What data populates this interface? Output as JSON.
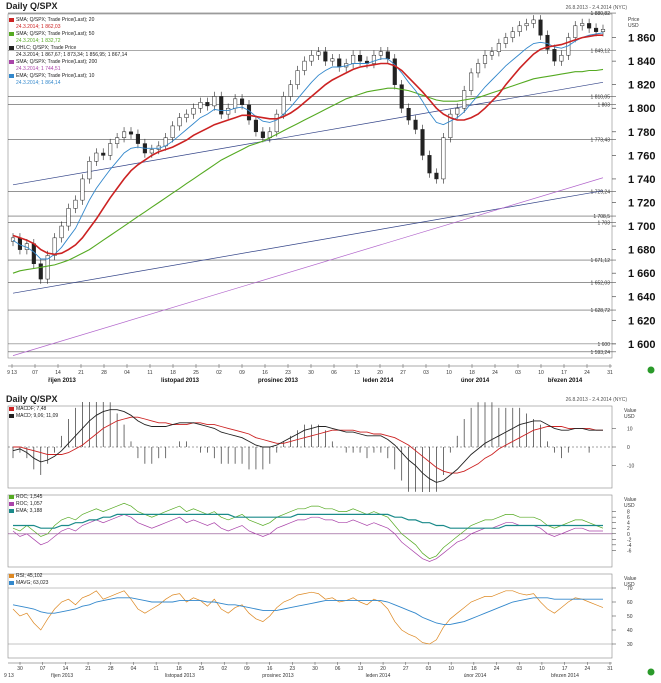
{
  "panels": {
    "main": {
      "title": "Daily Q/SPX",
      "date_range": "26.8.2013 - 2.4.2014 (NYC)",
      "axis_unit_1": "Price",
      "axis_unit_2": "USD",
      "legend": [
        {
          "label": "SMA; Q/SPX; Trade Price(Last); 20",
          "value": "24.3.2014; 1 862,03",
          "color": "#cc2222"
        },
        {
          "label": "SMA; Q/SPX; Trade Price(Last); 50",
          "value": "24.3.2014; 1 832,72",
          "color": "#55aa22"
        },
        {
          "label": "OHLC; Q/SPX; Trade Price",
          "value": "24.3.2014; 1 867,67; 1 873,34; 1 856,95; 1 867,14",
          "color": "#222222"
        },
        {
          "label": "SMA; Q/SPX; Trade Price(Last); 200",
          "value": "24.3.2014; 1 744,51",
          "color": "#aa44aa"
        },
        {
          "label": "EMA; Q/SPX; Trade Price(Last); 10",
          "value": "24.3.2014; 1 864,14",
          "color": "#3388cc"
        }
      ]
    },
    "macd": {
      "title": "Daily Q/SPX",
      "date_range": "26.8.2013 - 2.4.2014 (NYC)",
      "axis_unit_1": "Value",
      "axis_unit_2": "USD",
      "legend": [
        {
          "label": "MACDF; 7,48",
          "color": "#cc2222"
        },
        {
          "label": "MACD; 9,06; 11,09",
          "color": "#222222"
        }
      ]
    },
    "roc": {
      "axis_unit_1": "Value",
      "axis_unit_2": "USD",
      "legend": [
        {
          "label": "ROC; 1,545",
          "color": "#55aa22"
        },
        {
          "label": "ROC; 1,057",
          "color": "#aa44aa"
        },
        {
          "label": "EMA; 3,188",
          "color": "#1a8a8a"
        }
      ]
    },
    "rsi": {
      "axis_unit_1": "Value",
      "axis_unit_2": "USD",
      "legend": [
        {
          "label": "RSI; 45,102",
          "color": "#dd8822"
        },
        {
          "label": "MAVG; 63,023",
          "color": "#3388cc"
        }
      ]
    }
  },
  "chart_data": [
    {
      "type": "line",
      "name": "price",
      "y_ticks": [
        1600,
        1620,
        1640,
        1660,
        1680,
        1700,
        1720,
        1740,
        1760,
        1780,
        1800,
        1820,
        1840,
        1860
      ],
      "ylim": [
        1588,
        1880
      ],
      "levels": [
        {
          "value": 1880.82,
          "label": "1 880,82"
        },
        {
          "value": 1849.12,
          "label": "1 849,12"
        },
        {
          "value": 1810.05,
          "label": "1 810,05"
        },
        {
          "value": 1803,
          "label": "1 803"
        },
        {
          "value": 1773.43,
          "label": "1 773,43"
        },
        {
          "value": 1729.24,
          "label": "1 729,24"
        },
        {
          "value": 1708.5,
          "label": "1 708,5"
        },
        {
          "value": 1703,
          "label": "1 703"
        },
        {
          "value": 1671.12,
          "label": "1 671,12"
        },
        {
          "value": 1652.03,
          "label": "1 652,03"
        },
        {
          "value": 1628.72,
          "label": "1 628,72"
        },
        {
          "value": 1600,
          "label": "1 600"
        },
        {
          "value": 1593.24,
          "label": "1 593,24"
        }
      ],
      "x_ticks": [
        "9 13",
        "07",
        "14",
        "21",
        "28",
        "04",
        "11",
        "18",
        "25",
        "02",
        "09",
        "16",
        "23",
        "30",
        "06",
        "13",
        "20",
        "27",
        "03",
        "10",
        "18",
        "24",
        "03",
        "10",
        "17",
        "24",
        "31"
      ],
      "month_labels": [
        "říjen 2013",
        "listopad 2013",
        "prosinec 2013",
        "leden 2014",
        "únor 2014",
        "březen 2014"
      ],
      "close": [
        1690,
        1680,
        1685,
        1668,
        1655,
        1675,
        1690,
        1700,
        1715,
        1722,
        1740,
        1755,
        1762,
        1760,
        1770,
        1775,
        1780,
        1778,
        1770,
        1762,
        1765,
        1768,
        1775,
        1785,
        1792,
        1795,
        1800,
        1805,
        1802,
        1810,
        1795,
        1800,
        1808,
        1803,
        1790,
        1780,
        1775,
        1780,
        1795,
        1810,
        1820,
        1832,
        1840,
        1845,
        1848,
        1840,
        1842,
        1835,
        1838,
        1845,
        1840,
        1838,
        1845,
        1848,
        1842,
        1820,
        1800,
        1790,
        1782,
        1760,
        1745,
        1740,
        1775,
        1795,
        1800,
        1815,
        1830,
        1838,
        1845,
        1848,
        1855,
        1860,
        1865,
        1870,
        1872,
        1875,
        1862,
        1850,
        1840,
        1845,
        1860,
        1870,
        1872,
        1868,
        1865,
        1867
      ],
      "ema10": [
        1688,
        1684,
        1682,
        1678,
        1672,
        1672,
        1676,
        1682,
        1690,
        1698,
        1710,
        1722,
        1732,
        1740,
        1748,
        1755,
        1762,
        1766,
        1767,
        1766,
        1766,
        1766,
        1768,
        1772,
        1777,
        1782,
        1787,
        1792,
        1795,
        1799,
        1798,
        1798,
        1800,
        1801,
        1798,
        1793,
        1789,
        1788,
        1790,
        1795,
        1801,
        1808,
        1815,
        1822,
        1828,
        1832,
        1835,
        1835,
        1836,
        1838,
        1838,
        1838,
        1840,
        1842,
        1842,
        1837,
        1830,
        1822,
        1815,
        1806,
        1796,
        1788,
        1786,
        1789,
        1792,
        1797,
        1804,
        1811,
        1818,
        1824,
        1830,
        1836,
        1841,
        1846,
        1851,
        1855,
        1856,
        1855,
        1852,
        1851,
        1853,
        1857,
        1860,
        1862,
        1863,
        1864
      ],
      "sma20": [
        1692,
        1690,
        1688,
        1685,
        1680,
        1677,
        1676,
        1677,
        1680,
        1684,
        1690,
        1698,
        1706,
        1715,
        1724,
        1732,
        1740,
        1747,
        1752,
        1756,
        1760,
        1763,
        1765,
        1767,
        1770,
        1773,
        1777,
        1780,
        1783,
        1786,
        1788,
        1790,
        1792,
        1794,
        1794,
        1793,
        1792,
        1791,
        1791,
        1793,
        1796,
        1800,
        1805,
        1810,
        1815,
        1820,
        1824,
        1827,
        1830,
        1833,
        1835,
        1836,
        1837,
        1838,
        1838,
        1836,
        1832,
        1826,
        1820,
        1814,
        1807,
        1800,
        1795,
        1792,
        1790,
        1790,
        1792,
        1795,
        1800,
        1806,
        1812,
        1820,
        1827,
        1834,
        1840,
        1846,
        1850,
        1852,
        1853,
        1854,
        1856,
        1858,
        1860,
        1861,
        1862,
        1862
      ],
      "sma50": [
        1660,
        1662,
        1663,
        1664,
        1665,
        1666,
        1667,
        1669,
        1671,
        1674,
        1677,
        1680,
        1684,
        1688,
        1692,
        1696,
        1700,
        1704,
        1708,
        1712,
        1716,
        1720,
        1724,
        1728,
        1732,
        1736,
        1740,
        1744,
        1748,
        1752,
        1756,
        1759,
        1762,
        1765,
        1768,
        1770,
        1772,
        1775,
        1778,
        1781,
        1784,
        1787,
        1790,
        1793,
        1796,
        1799,
        1802,
        1805,
        1808,
        1810,
        1812,
        1814,
        1815,
        1816,
        1817,
        1817,
        1816,
        1815,
        1813,
        1811,
        1809,
        1807,
        1806,
        1806,
        1806,
        1807,
        1808,
        1809,
        1811,
        1813,
        1815,
        1817,
        1819,
        1821,
        1823,
        1825,
        1826,
        1827,
        1828,
        1829,
        1830,
        1831,
        1831,
        1832,
        1832,
        1833
      ],
      "trend_lines": [
        {
          "x": [
            0,
            85
          ],
          "y": [
            1735,
            1822
          ]
        },
        {
          "x": [
            0,
            85
          ],
          "y": [
            1643,
            1730
          ]
        },
        {
          "x": [
            0,
            85
          ],
          "y": [
            1590,
            1741
          ]
        }
      ]
    },
    {
      "type": "line",
      "name": "macd",
      "ylim": [
        -22,
        22
      ],
      "y_ticks": [
        10,
        0,
        -10
      ],
      "macd": [
        -2,
        -1,
        -3,
        -6,
        -8,
        -7,
        -5,
        -2,
        2,
        6,
        10,
        14,
        17,
        19,
        20,
        20,
        19,
        17,
        14,
        12,
        11,
        11,
        11,
        12,
        13,
        13,
        13,
        12,
        11,
        10,
        8,
        7,
        6,
        5,
        3,
        1,
        0,
        0,
        1,
        3,
        5,
        7,
        9,
        10,
        11,
        11,
        10,
        9,
        8,
        8,
        7,
        6,
        6,
        6,
        4,
        1,
        -3,
        -7,
        -10,
        -14,
        -17,
        -19,
        -18,
        -15,
        -12,
        -8,
        -4,
        -1,
        2,
        4,
        6,
        8,
        10,
        12,
        13,
        14,
        14,
        12,
        10,
        9,
        9,
        10,
        10,
        9,
        9,
        9
      ],
      "signal": [
        0,
        0,
        -1,
        -2,
        -3,
        -4,
        -4,
        -4,
        -3,
        -1,
        1,
        4,
        7,
        10,
        12,
        14,
        15,
        16,
        16,
        15,
        14,
        13,
        13,
        12,
        12,
        12,
        13,
        13,
        12,
        12,
        11,
        10,
        9,
        8,
        7,
        5,
        4,
        3,
        2,
        2,
        3,
        4,
        5,
        6,
        7,
        8,
        9,
        9,
        9,
        9,
        8,
        8,
        7,
        7,
        6,
        5,
        3,
        1,
        -2,
        -5,
        -8,
        -11,
        -13,
        -14,
        -14,
        -13,
        -11,
        -9,
        -6,
        -4,
        -1,
        1,
        3,
        5,
        7,
        9,
        10,
        11,
        11,
        11,
        10,
        10,
        10,
        10,
        9,
        9
      ]
    },
    {
      "type": "line",
      "name": "roc",
      "ylim": [
        -12,
        14
      ],
      "y_ticks": [
        8,
        6,
        4,
        2,
        0,
        -2,
        -4,
        -6
      ],
      "roc1": [
        2,
        1,
        3,
        1,
        -1,
        0,
        3,
        5,
        6,
        5,
        7,
        8,
        9,
        8,
        9,
        10,
        11,
        10,
        8,
        7,
        6,
        7,
        8,
        9,
        10,
        8,
        9,
        8,
        7,
        8,
        6,
        5,
        6,
        7,
        5,
        4,
        3,
        4,
        6,
        7,
        8,
        9,
        9,
        10,
        10,
        9,
        9,
        8,
        8,
        9,
        8,
        7,
        8,
        7,
        6,
        3,
        0,
        -2,
        -4,
        -7,
        -9,
        -8,
        -5,
        -3,
        -1,
        1,
        3,
        4,
        5,
        5,
        6,
        7,
        7,
        6,
        6,
        6,
        5,
        3,
        2,
        3,
        4,
        5,
        5,
        4,
        3,
        2
      ],
      "roc2": [
        1,
        -1,
        0,
        -2,
        -4,
        -3,
        -1,
        1,
        2,
        1,
        3,
        4,
        5,
        4,
        5,
        6,
        7,
        6,
        4,
        3,
        2,
        3,
        4,
        5,
        6,
        4,
        5,
        4,
        3,
        4,
        2,
        1,
        2,
        3,
        1,
        0,
        -1,
        0,
        2,
        3,
        4,
        5,
        5,
        6,
        6,
        5,
        5,
        4,
        4,
        5,
        4,
        3,
        4,
        3,
        2,
        0,
        -3,
        -5,
        -7,
        -9,
        -10,
        -9,
        -7,
        -5,
        -3,
        -2,
        0,
        1,
        2,
        2,
        3,
        4,
        4,
        3,
        3,
        3,
        2,
        0,
        -1,
        0,
        1,
        2,
        2,
        1,
        1,
        1
      ],
      "ema": [
        3,
        3,
        3,
        3,
        2,
        2,
        2,
        3,
        3,
        4,
        4,
        5,
        5,
        6,
        6,
        7,
        7,
        7,
        7,
        7,
        7,
        7,
        7,
        7,
        7,
        7,
        7,
        7,
        7,
        7,
        7,
        7,
        6,
        6,
        6,
        6,
        6,
        6,
        6,
        6,
        6,
        7,
        7,
        7,
        7,
        7,
        7,
        7,
        7,
        7,
        7,
        7,
        7,
        7,
        7,
        6,
        6,
        5,
        5,
        4,
        4,
        3,
        3,
        2,
        2,
        2,
        2,
        2,
        2,
        2,
        2,
        3,
        3,
        3,
        3,
        3,
        3,
        3,
        3,
        3,
        3,
        3,
        3,
        3,
        3,
        3
      ]
    },
    {
      "type": "line",
      "name": "rsi",
      "ylim": [
        20,
        80
      ],
      "y_ticks": [
        70,
        60,
        50,
        40,
        30
      ],
      "rsi": [
        55,
        50,
        52,
        45,
        40,
        48,
        55,
        60,
        62,
        58,
        63,
        65,
        68,
        62,
        64,
        66,
        68,
        62,
        55,
        52,
        55,
        58,
        62,
        65,
        66,
        60,
        63,
        61,
        57,
        62,
        55,
        52,
        56,
        58,
        52,
        48,
        46,
        50,
        56,
        60,
        62,
        65,
        66,
        67,
        66,
        62,
        63,
        60,
        61,
        63,
        60,
        58,
        62,
        60,
        55,
        46,
        40,
        37,
        35,
        31,
        30,
        33,
        42,
        48,
        52,
        56,
        60,
        62,
        64,
        64,
        66,
        68,
        68,
        66,
        65,
        66,
        60,
        55,
        52,
        56,
        60,
        63,
        62,
        60,
        58,
        56
      ],
      "mavg": [
        58,
        57,
        56,
        55,
        53,
        52,
        52,
        53,
        54,
        55,
        57,
        58,
        60,
        61,
        62,
        63,
        63,
        63,
        62,
        61,
        60,
        60,
        60,
        60,
        61,
        61,
        61,
        61,
        60,
        60,
        59,
        58,
        58,
        57,
        56,
        55,
        54,
        54,
        54,
        55,
        56,
        57,
        58,
        59,
        60,
        61,
        61,
        61,
        61,
        61,
        61,
        61,
        61,
        61,
        60,
        58,
        56,
        54,
        52,
        49,
        47,
        45,
        44,
        44,
        45,
        46,
        48,
        50,
        52,
        54,
        56,
        58,
        60,
        61,
        62,
        63,
        63,
        63,
        62,
        62,
        62,
        62,
        62,
        62,
        62,
        62
      ]
    }
  ],
  "x_axis_bottom": {
    "ticks": [
      "30",
      "07",
      "14",
      "21",
      "28",
      "04",
      "11",
      "18",
      "25",
      "02",
      "09",
      "16",
      "23",
      "30",
      "06",
      "13",
      "20",
      "27",
      "03",
      "10",
      "18",
      "24",
      "03",
      "10",
      "17",
      "24",
      "31"
    ],
    "year_prefix": "9 13",
    "month_labels": [
      "říjen 2013",
      "listopad 2013",
      "prosinec 2013",
      "leden 2014",
      "únor 2014",
      "březen 2014"
    ]
  }
}
